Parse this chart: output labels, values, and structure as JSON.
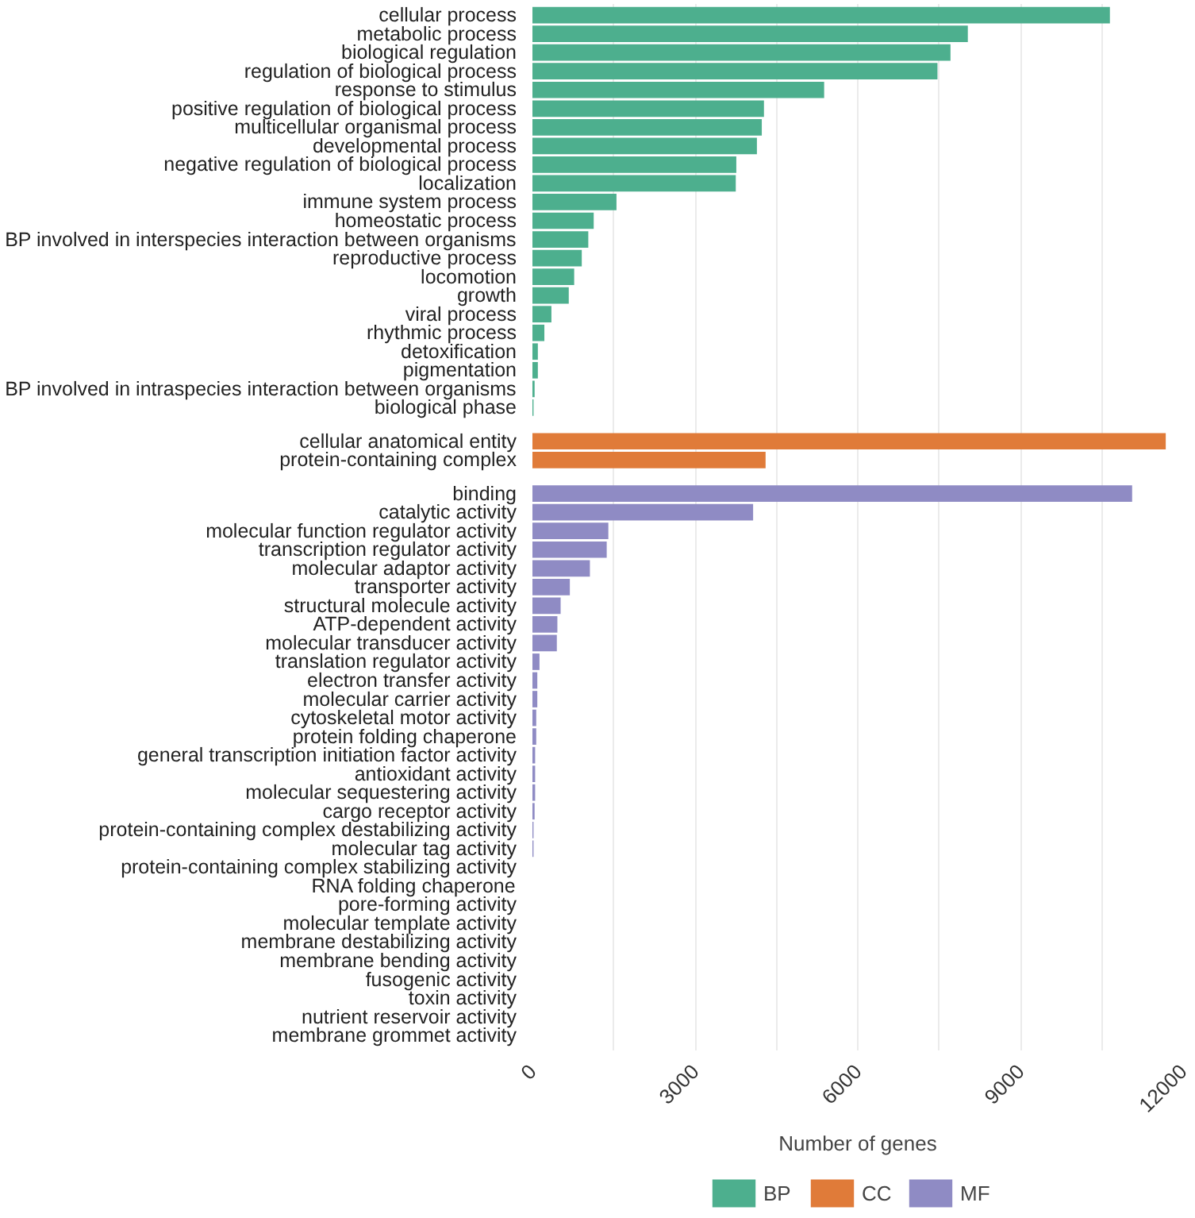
{
  "chart_data": {
    "type": "bar",
    "orientation": "horizontal",
    "xlabel": "Number of genes",
    "categories": [
      "cellular process",
      "metabolic process",
      "biological regulation",
      "regulation of biological process",
      "response to stimulus",
      "positive regulation of biological process",
      "multicellular organismal process",
      "developmental process",
      "negative regulation of biological process",
      "localization",
      "immune system process",
      "homeostatic process",
      "BP involved in interspecies interaction between organisms",
      "reproductive process",
      "locomotion",
      "growth",
      "viral process",
      "rhythmic process",
      "detoxification",
      "pigmentation",
      "BP involved in intraspecies interaction between organisms",
      "biological phase",
      "cellular anatomical entity",
      "protein-containing complex",
      "binding",
      "catalytic activity",
      "molecular function regulator activity",
      "transcription regulator activity",
      "molecular adaptor activity",
      "transporter activity",
      "structural molecule activity",
      "ATP-dependent activity",
      "molecular transducer activity",
      "translation regulator activity",
      "electron transfer activity",
      "molecular carrier activity",
      "cytoskeletal motor activity",
      "protein folding chaperone",
      "general transcription initiation factor activity",
      "antioxidant activity",
      "molecular sequestering activity",
      "cargo receptor activity",
      "protein-containing complex destabilizing activity",
      "molecular tag activity",
      "protein-containing complex stabilizing activity",
      "RNA folding chaperone",
      "pore-forming activity",
      "molecular template activity",
      "membrane destabilizing activity",
      "membrane bending activity",
      "fusogenic activity",
      "toxin activity",
      "nutrient reservoir activity",
      "membrane grommet activity"
    ],
    "series": [
      {
        "name": "BP",
        "color": "#4daf8e",
        "values": [
          10650,
          8030,
          7710,
          7470,
          5380,
          4270,
          4230,
          4140,
          3760,
          3750,
          1550,
          1130,
          1030,
          910,
          770,
          670,
          350,
          220,
          100,
          100,
          40,
          20,
          null,
          null,
          null,
          null,
          null,
          null,
          null,
          null,
          null,
          null,
          null,
          null,
          null,
          null,
          null,
          null,
          null,
          null,
          null,
          null,
          null,
          null,
          null,
          null,
          null,
          null,
          null,
          null,
          null,
          null,
          null,
          null
        ]
      },
      {
        "name": "CC",
        "color": "#e07b39",
        "values": [
          null,
          null,
          null,
          null,
          null,
          null,
          null,
          null,
          null,
          null,
          null,
          null,
          null,
          null,
          null,
          null,
          null,
          null,
          null,
          null,
          null,
          null,
          11680,
          4300,
          null,
          null,
          null,
          null,
          null,
          null,
          null,
          null,
          null,
          null,
          null,
          null,
          null,
          null,
          null,
          null,
          null,
          null,
          null,
          null,
          null,
          null,
          null,
          null,
          null,
          null,
          null,
          null,
          null,
          null
        ]
      },
      {
        "name": "MF",
        "color": "#8f8bc4",
        "values": [
          null,
          null,
          null,
          null,
          null,
          null,
          null,
          null,
          null,
          null,
          null,
          null,
          null,
          null,
          null,
          null,
          null,
          null,
          null,
          null,
          null,
          null,
          null,
          null,
          11060,
          4070,
          1400,
          1370,
          1060,
          690,
          520,
          460,
          450,
          130,
          90,
          90,
          70,
          70,
          50,
          50,
          50,
          40,
          20,
          20,
          0,
          0,
          0,
          0,
          0,
          0,
          0,
          0,
          0,
          0
        ]
      }
    ],
    "xlim": [
      0,
      12000
    ],
    "xticks": [
      0,
      {
        "value": 1500,
        "label": null
      },
      3000,
      {
        "value": 4500,
        "label": null
      },
      6000,
      {
        "value": 7500,
        "label": null
      },
      9000,
      {
        "value": 10500,
        "label": null
      },
      12000
    ],
    "grid": "x",
    "legend": "bottom left"
  }
}
